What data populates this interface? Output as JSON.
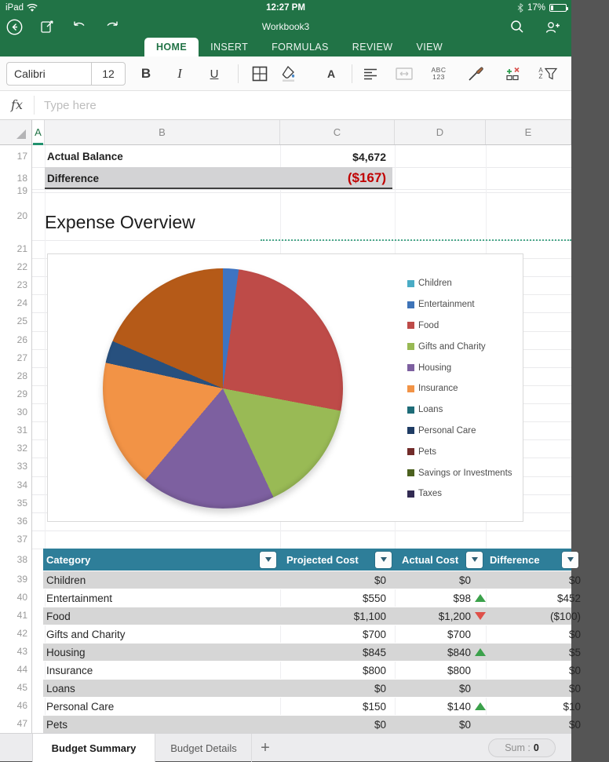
{
  "status_bar": {
    "device": "iPad",
    "time": "12:27 PM",
    "battery_percent": "17%"
  },
  "nav": {
    "title": "Workbook3"
  },
  "ribbon": {
    "tabs": [
      {
        "label": "HOME",
        "active": true
      },
      {
        "label": "INSERT",
        "active": false
      },
      {
        "label": "FORMULAS",
        "active": false
      },
      {
        "label": "REVIEW",
        "active": false
      },
      {
        "label": "VIEW",
        "active": false
      }
    ]
  },
  "toolbar": {
    "font_name": "Calibri",
    "font_size": "12",
    "bold_label": "B",
    "italic_label": "I",
    "underline_label": "U",
    "number_format_top": "ABC",
    "number_format_bottom": "123",
    "sort_top": "A",
    "sort_bottom": "Z",
    "font_color_letter": "A"
  },
  "formula_bar": {
    "fx_label": "fx",
    "placeholder": "Type here"
  },
  "grid": {
    "columns": [
      "A",
      "B",
      "C",
      "D",
      "E"
    ],
    "rows": [
      "17",
      "18",
      "19",
      "20",
      "21",
      "22",
      "23",
      "24",
      "25",
      "26",
      "27",
      "28",
      "29",
      "30",
      "31",
      "32",
      "33",
      "34",
      "35",
      "36",
      "37",
      "38",
      "39",
      "40",
      "41",
      "42",
      "43",
      "44",
      "45",
      "46",
      "47"
    ]
  },
  "summary_cells": {
    "actual_balance_label": "Actual Balance",
    "actual_balance_value": "$4,672",
    "difference_label": "Difference",
    "difference_value": "($167)",
    "section_title": "Expense Overview"
  },
  "chart_data": {
    "type": "pie",
    "title": "Expense Overview",
    "legend_position": "right",
    "categories": [
      "Children",
      "Entertainment",
      "Food",
      "Gifts and Charity",
      "Housing",
      "Insurance",
      "Loans",
      "Personal Care",
      "Pets",
      "Savings or Investments",
      "Taxes"
    ],
    "values": [
      0,
      98,
      1200,
      700,
      840,
      800,
      0,
      140,
      0,
      860,
      0
    ],
    "legend": [
      {
        "label": "Children",
        "color": "#4AACC5"
      },
      {
        "label": "Entertainment",
        "color": "#3E74B8"
      },
      {
        "label": "Food",
        "color": "#BE4B48"
      },
      {
        "label": "Gifts and Charity",
        "color": "#98B954"
      },
      {
        "label": "Housing",
        "color": "#7D60A0"
      },
      {
        "label": "Insurance",
        "color": "#F29346"
      },
      {
        "label": "Loans",
        "color": "#1E6C78"
      },
      {
        "label": "Personal Care",
        "color": "#1F3C64"
      },
      {
        "label": "Pets",
        "color": "#722C2A"
      },
      {
        "label": "Savings or Investments",
        "color": "#4C611F"
      },
      {
        "label": "Taxes",
        "color": "#322B53"
      }
    ],
    "slices": [
      {
        "label": "Entertainment",
        "value": 98,
        "color": "#3E74C2"
      },
      {
        "label": "Food",
        "value": 1200,
        "color": "#BE4B48"
      },
      {
        "label": "Gifts and Charity",
        "value": 700,
        "color": "#99BA55"
      },
      {
        "label": "Housing",
        "value": 840,
        "color": "#7D60A0"
      },
      {
        "label": "Insurance",
        "value": 800,
        "color": "#F29346"
      },
      {
        "label": "Personal Care",
        "value": 140,
        "color": "#27507E"
      },
      {
        "label": "Savings or Investments",
        "value": 860,
        "color": "#B55A18"
      }
    ]
  },
  "table": {
    "headers": [
      "Category",
      "Projected Cost",
      "Actual Cost",
      "Difference"
    ],
    "rows": [
      {
        "category": "Children",
        "projected": "$0",
        "actual": "$0",
        "trend": "",
        "difference": "$0",
        "diff_negative": false
      },
      {
        "category": "Entertainment",
        "projected": "$550",
        "actual": "$98",
        "trend": "up",
        "difference": "$452",
        "diff_negative": false
      },
      {
        "category": "Food",
        "projected": "$1,100",
        "actual": "$1,200",
        "trend": "down",
        "difference": "($100)",
        "diff_negative": true
      },
      {
        "category": "Gifts and Charity",
        "projected": "$700",
        "actual": "$700",
        "trend": "",
        "difference": "$0",
        "diff_negative": false
      },
      {
        "category": "Housing",
        "projected": "$845",
        "actual": "$840",
        "trend": "up",
        "difference": "$5",
        "diff_negative": false
      },
      {
        "category": "Insurance",
        "projected": "$800",
        "actual": "$800",
        "trend": "",
        "difference": "$0",
        "diff_negative": false
      },
      {
        "category": "Loans",
        "projected": "$0",
        "actual": "$0",
        "trend": "",
        "difference": "$0",
        "diff_negative": false
      },
      {
        "category": "Personal Care",
        "projected": "$150",
        "actual": "$140",
        "trend": "up",
        "difference": "$10",
        "diff_negative": false
      },
      {
        "category": "Pets",
        "projected": "$0",
        "actual": "$0",
        "trend": "",
        "difference": "$0",
        "diff_negative": false
      }
    ]
  },
  "sheet_bar": {
    "active_tab": "Budget Summary",
    "other_tab": "Budget Details",
    "add_label": "+",
    "sum_label": "Sum :",
    "sum_value": "0"
  },
  "colors": {
    "office_green": "#217346",
    "table_header_teal": "#2E7E99",
    "row_alt_gray": "#D6D6D6",
    "negative_red": "#C00000",
    "trend_up_green": "#3BA14B",
    "trend_down_red": "#DF5049"
  }
}
